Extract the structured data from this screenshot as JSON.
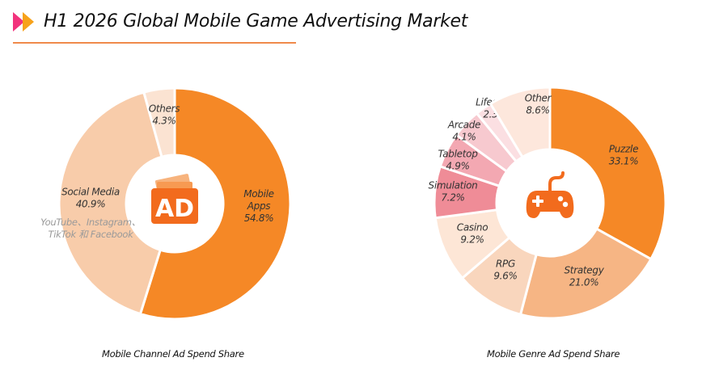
{
  "header": {
    "title": "H1 2026 Global Mobile Game Advertising Market",
    "icon": "double-chevron-right-icon",
    "accent_colors": [
      "#f2337d",
      "#f7a21b"
    ]
  },
  "chart_data": [
    {
      "type": "pie",
      "variant": "donut",
      "title": "Mobile Channel Ad Spend Share",
      "center_icon": "ad-icon",
      "center_text": "AD",
      "slices": [
        {
          "label": [
            "Mobile",
            "Apps"
          ],
          "display_value": "54.8%",
          "value": 54.8,
          "color": "#f58826"
        },
        {
          "label": [
            "Social Media"
          ],
          "display_value": "40.9%",
          "value": 40.9,
          "color": "#f8ccaa",
          "sublabel": [
            "YouTube、Instagram、",
            "TikTok 和 Facebook"
          ]
        },
        {
          "label": [
            "Others"
          ],
          "display_value": "4.3%",
          "value": 4.3,
          "color": "#fbe3d2"
        }
      ]
    },
    {
      "type": "pie",
      "variant": "donut",
      "title": "Mobile Genre Ad Spend Share",
      "center_icon": "gamepad-icon",
      "slices": [
        {
          "label": [
            "Puzzle"
          ],
          "display_value": "33.1%",
          "value": 33.1,
          "color": "#f58826"
        },
        {
          "label": [
            "Strategy"
          ],
          "display_value": "21.0%",
          "value": 21.0,
          "color": "#f6b584"
        },
        {
          "label": [
            "RPG"
          ],
          "display_value": "9.6%",
          "value": 9.6,
          "color": "#f9d6bd"
        },
        {
          "label": [
            "Casino"
          ],
          "display_value": "9.2%",
          "value": 9.2,
          "color": "#fde6d6"
        },
        {
          "label": [
            "Simulation"
          ],
          "display_value": "7.2%",
          "value": 7.2,
          "color": "#ef8c97"
        },
        {
          "label": [
            "Tabletop"
          ],
          "display_value": "4.9%",
          "value": 4.9,
          "color": "#f3a8b2"
        },
        {
          "label": [
            "Arcade"
          ],
          "display_value": "4.1%",
          "value": 4.1,
          "color": "#f7c9cf"
        },
        {
          "label": [
            "Lifestyle"
          ],
          "display_value": "2.3%",
          "value": 2.3,
          "color": "#fbdfe2"
        },
        {
          "label": [
            "Other"
          ],
          "display_value": "8.6%",
          "value": 8.6,
          "color": "#fde7dc"
        }
      ]
    }
  ]
}
